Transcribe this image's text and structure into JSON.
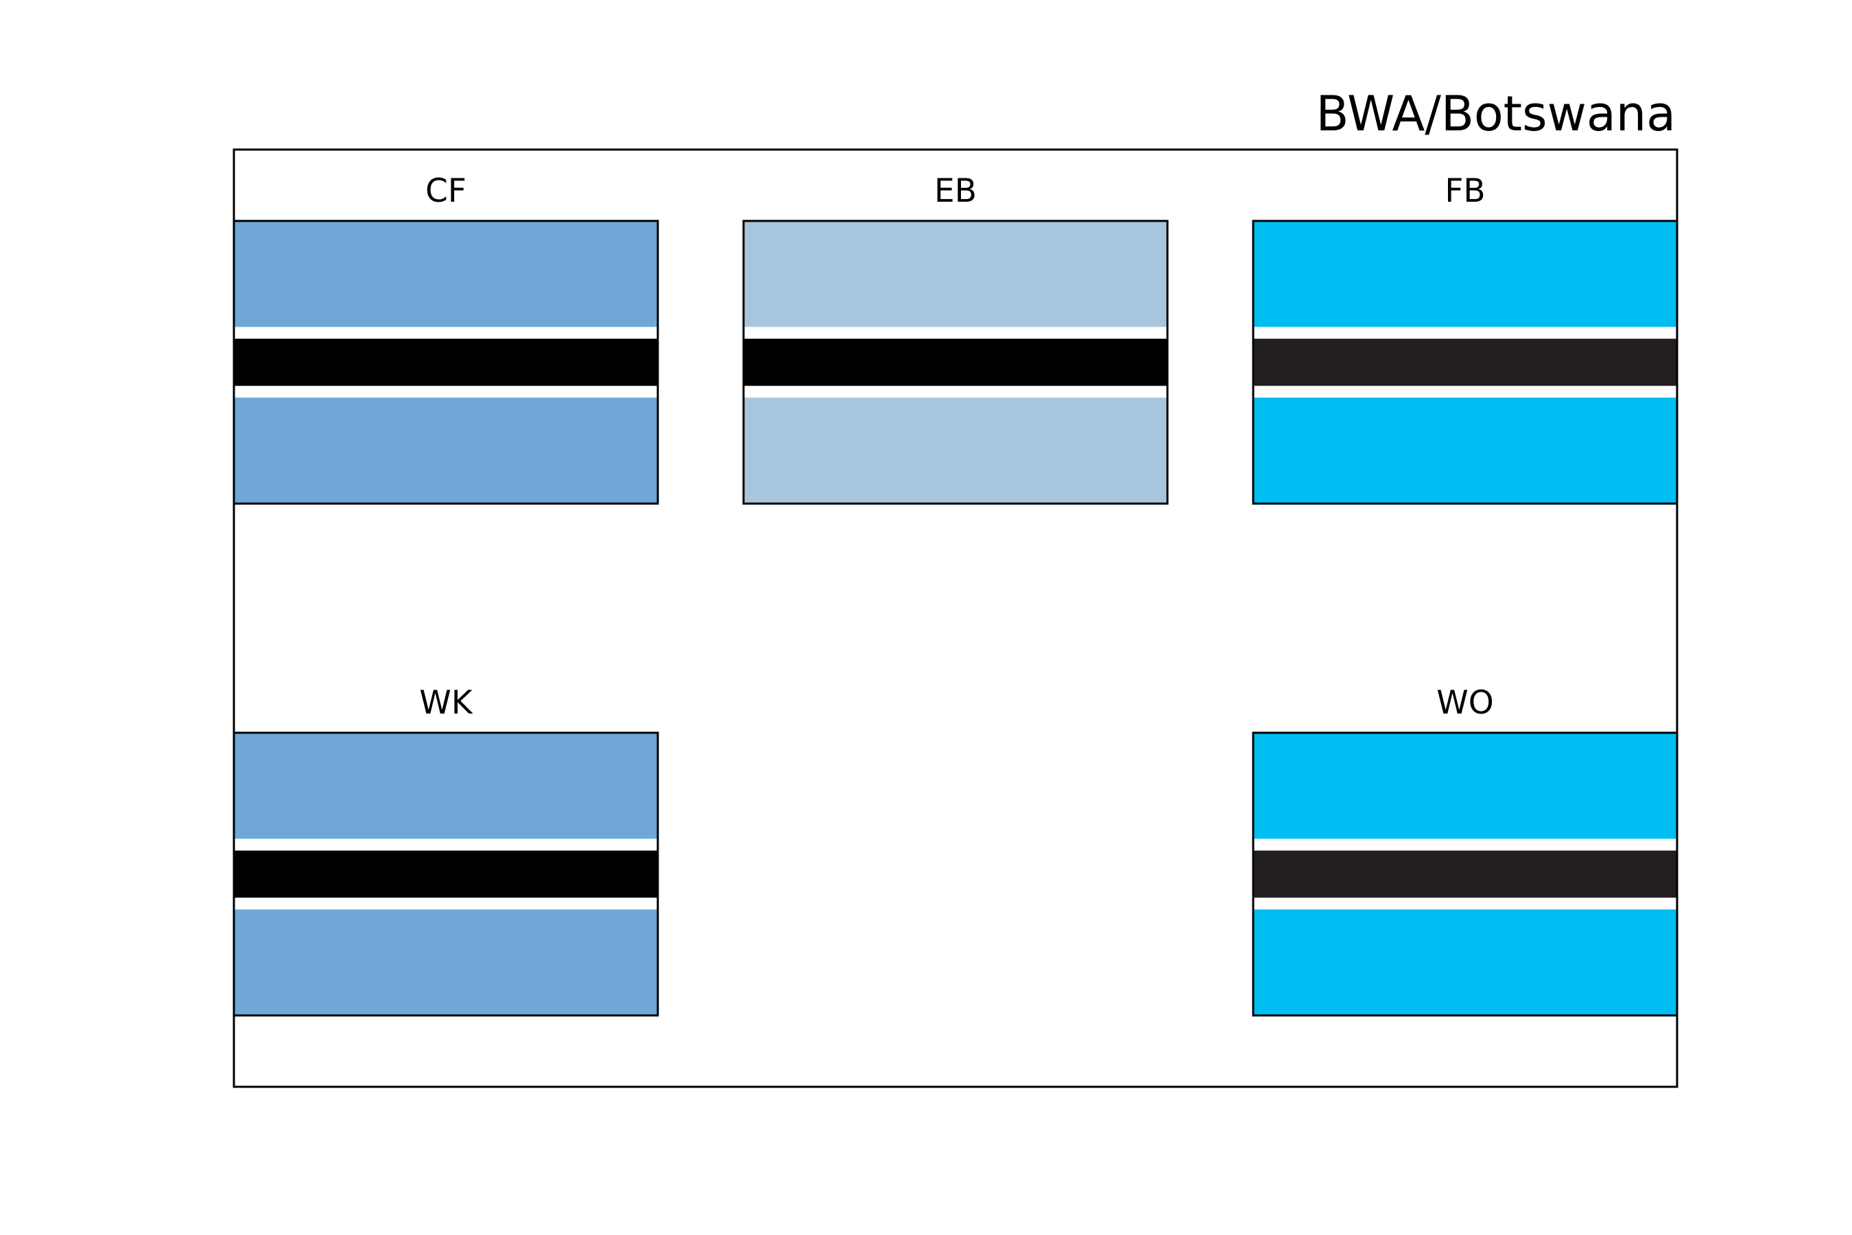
{
  "title": "BWA/Botswana",
  "flags": [
    {
      "label": "CF",
      "row": 0,
      "col": 0,
      "colors": {
        "field": "#6fa8d6",
        "fimbriation": "#ffffff",
        "band": "#000000"
      }
    },
    {
      "label": "EB",
      "row": 0,
      "col": 1,
      "colors": {
        "field": "#a7c5dd",
        "fimbriation": "#ffffff",
        "band": "#000000"
      }
    },
    {
      "label": "FB",
      "row": 0,
      "col": 2,
      "colors": {
        "field": "#00bdf2",
        "fimbriation": "#ffffff",
        "band": "#231f20"
      }
    },
    {
      "label": "WK",
      "row": 1,
      "col": 0,
      "colors": {
        "field": "#6fa8d6",
        "fimbriation": "#ffffff",
        "band": "#000000"
      }
    },
    {
      "label": "WO",
      "row": 1,
      "col": 2,
      "colors": {
        "field": "#00bdf2",
        "fimbriation": "#ffffff",
        "band": "#231f20"
      }
    }
  ]
}
